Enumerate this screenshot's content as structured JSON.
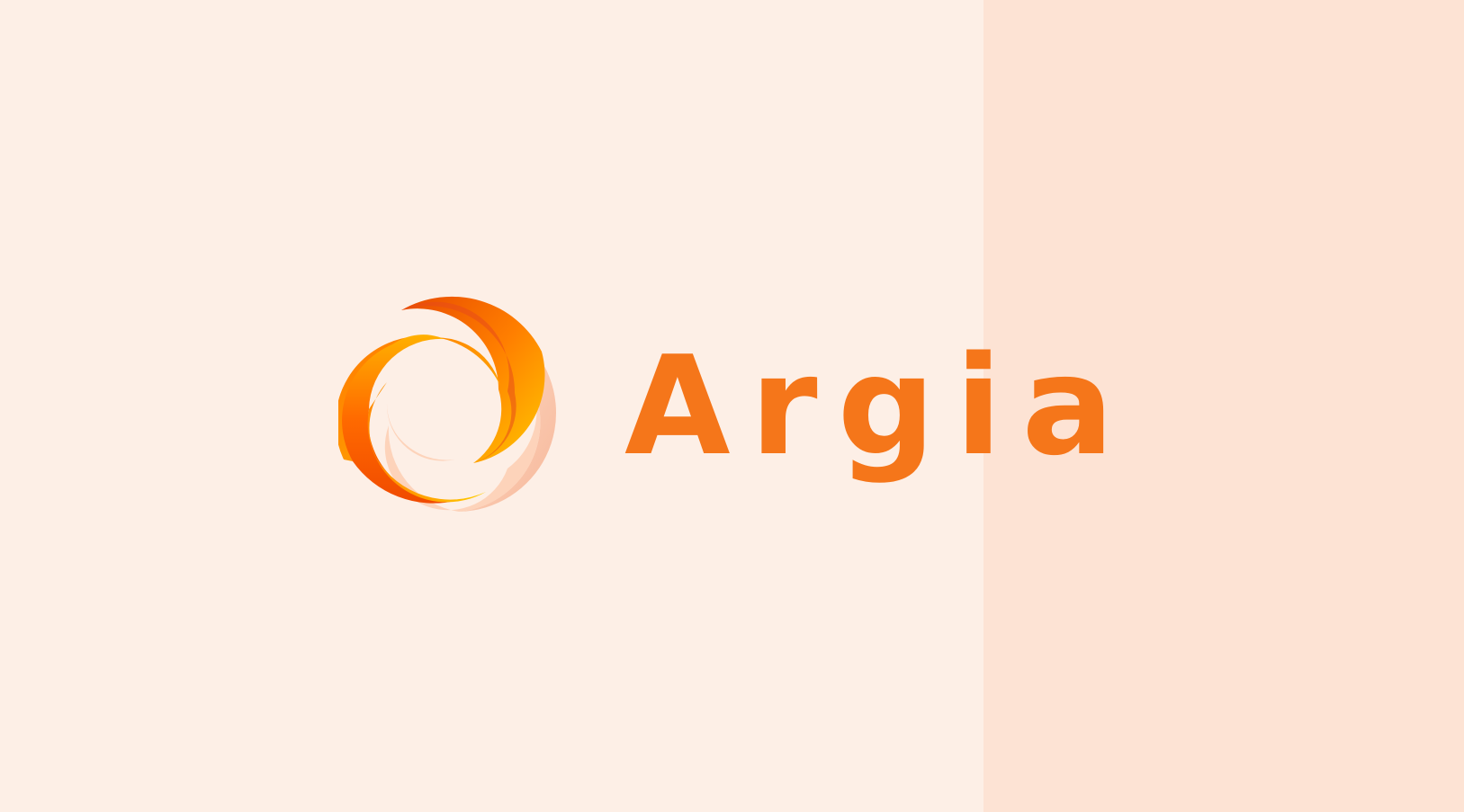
{
  "brand": {
    "name": "Argia",
    "logo_icon": "swirl-ring-icon"
  },
  "colors": {
    "background": "#FDEFE6",
    "panel": "#FDE3D4",
    "wordmark": "#F5761A",
    "logo_dark_orange": "#F25A00",
    "logo_orange": "#FF8C00",
    "logo_yellow": "#FFC300",
    "logo_peach": "#FAC3A3"
  }
}
